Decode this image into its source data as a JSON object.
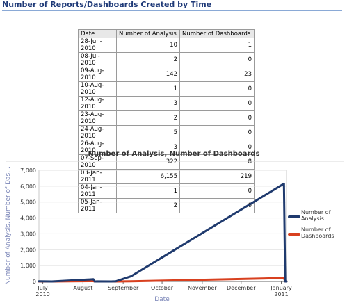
{
  "page": {
    "title": "Number of Reports/Dashboards Created by Time"
  },
  "table": {
    "headers": [
      "Date",
      "Number of Analysis",
      "Number of Dashboards"
    ],
    "rows": [
      [
        "28-Jun-2010",
        "10",
        "1"
      ],
      [
        "08-Jul-2010",
        "2",
        "0"
      ],
      [
        "09-Aug-2010",
        "142",
        "23"
      ],
      [
        "10-Aug-2010",
        "1",
        "0"
      ],
      [
        "12-Aug-2010",
        "3",
        "0"
      ],
      [
        "23-Aug-2010",
        "2",
        "0"
      ],
      [
        "24-Aug-2010",
        "5",
        "0"
      ],
      [
        "26-Aug-2010",
        "3",
        "0"
      ],
      [
        "07-Sep-2010",
        "322",
        "8"
      ],
      [
        "03-Jan-2011",
        "6,155",
        "219"
      ],
      [
        "04-Jan-2011",
        "1",
        "0"
      ],
      [
        "05-Jan-2011",
        "2",
        "0"
      ]
    ]
  },
  "chart_data": {
    "type": "line",
    "title": "Number of Analysis, Number of Dashboards",
    "xlabel": "Date",
    "ylabel": "Number of Analysis, Number of Das...",
    "ylim": [
      0,
      7000
    ],
    "yticks": [
      0,
      1000,
      2000,
      3000,
      4000,
      5000,
      6000,
      7000
    ],
    "ytick_labels": [
      "0",
      "1,000",
      "2,000",
      "3,000",
      "4,000",
      "5,000",
      "6,000",
      "7,000"
    ],
    "xlim": [
      "2010-06-28",
      "2011-01-05"
    ],
    "xticks": [
      {
        "date": "2010-07-01",
        "label": "July",
        "sublabel": "2010"
      },
      {
        "date": "2010-08-01",
        "label": "August",
        "sublabel": ""
      },
      {
        "date": "2010-09-01",
        "label": "September",
        "sublabel": ""
      },
      {
        "date": "2010-10-01",
        "label": "October",
        "sublabel": ""
      },
      {
        "date": "2010-11-01",
        "label": "November",
        "sublabel": ""
      },
      {
        "date": "2010-12-01",
        "label": "December",
        "sublabel": ""
      },
      {
        "date": "2011-01-01",
        "label": "January",
        "sublabel": "2011"
      }
    ],
    "grid": true,
    "legend": "right",
    "x": [
      "2010-06-28",
      "2010-07-08",
      "2010-08-09",
      "2010-08-10",
      "2010-08-12",
      "2010-08-23",
      "2010-08-24",
      "2010-08-26",
      "2010-09-07",
      "2011-01-03",
      "2011-01-04",
      "2011-01-05"
    ],
    "series": [
      {
        "name": "Number of Analysis",
        "color": "#1f3a6e",
        "values": [
          10,
          2,
          142,
          1,
          3,
          2,
          5,
          3,
          322,
          6155,
          1,
          2
        ]
      },
      {
        "name": "Number of Dashboards",
        "color": "#d8401f",
        "values": [
          1,
          0,
          23,
          0,
          0,
          0,
          0,
          0,
          8,
          219,
          0,
          0
        ]
      }
    ]
  }
}
